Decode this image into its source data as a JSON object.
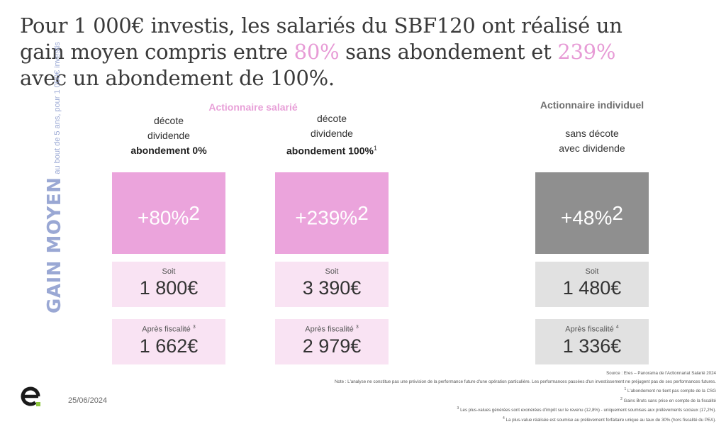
{
  "title": {
    "part1": "Pour 1 000€ investis, les salariés du SBF120 ont réalisé un gain moyen compris entre ",
    "hl1": "80%",
    "part2": " sans abondement et ",
    "hl2": "239%",
    "part3": " avec un abondement de 100%."
  },
  "groups": {
    "salarie": "Actionnaire salarié",
    "individuel": "Actionnaire individuel"
  },
  "vertical_label": {
    "main": "GAIN MOYEN",
    "sub": "au bout de 5 ans, pour 1 000€ investis"
  },
  "columns": [
    {
      "head1": "décote",
      "head2": "dividende",
      "head3": "abondement 0%",
      "head3_sup": "",
      "gain": "+80%",
      "gain_sup": "2",
      "soit_label": "Soit",
      "soit_value": "1 800€",
      "apres_label": "Après fiscalité",
      "apres_sup": "3",
      "apres_value": "1 662€"
    },
    {
      "head1": "décote",
      "head2": "dividende",
      "head3": "abondement 100%",
      "head3_sup": "1",
      "gain": "+239%",
      "gain_sup": "2",
      "soit_label": "Soit",
      "soit_value": "3 390€",
      "apres_label": "Après fiscalité",
      "apres_sup": "3",
      "apres_value": "2 979€"
    },
    {
      "head1": "sans décote",
      "head2": "avec dividende",
      "gain": "+48%",
      "gain_sup": "2",
      "soit_label": "Soit",
      "soit_value": "1 480€",
      "apres_label": "Après fiscalité",
      "apres_sup": "4",
      "apres_value": "1 336€"
    }
  ],
  "notes": {
    "source": "Source : Eres – Panorama de l'Actionnariat Salarié 2024",
    "note": "Note : L'analyse ne constitue pas une prévision de la performance future d'une opération particulière. Les performances passées d'un investissement ne préjugent pas de ses performances futures.",
    "n1_mark": "1",
    "n1": "L'abondement ne tient pas compte de la CSG",
    "n2_mark": "2",
    "n2": "Gains Bruts sans prise en compte de la fiscalité",
    "n3_mark": "3",
    "n3": "Les plus-values générées sont exonérées d'impôt sur le revenu (12,8%) - uniquement soumises aux prélèvements sociaux (17,2%).",
    "n4_mark": "4",
    "n4": "La plus-value réalisée est soumise au prélèvement forfaitaire unique au taux de 30% (hors fiscalité du PEA)."
  },
  "footer": {
    "date": "25/06/2024"
  },
  "colors": {
    "pink_strong": "#eba4dc",
    "pink_light": "#f9e3f3",
    "grey_strong": "#8f8f8f",
    "grey_light": "#e1e1e1",
    "accent_blue": "#9aa8d4",
    "logo_green": "#8dc63f"
  }
}
